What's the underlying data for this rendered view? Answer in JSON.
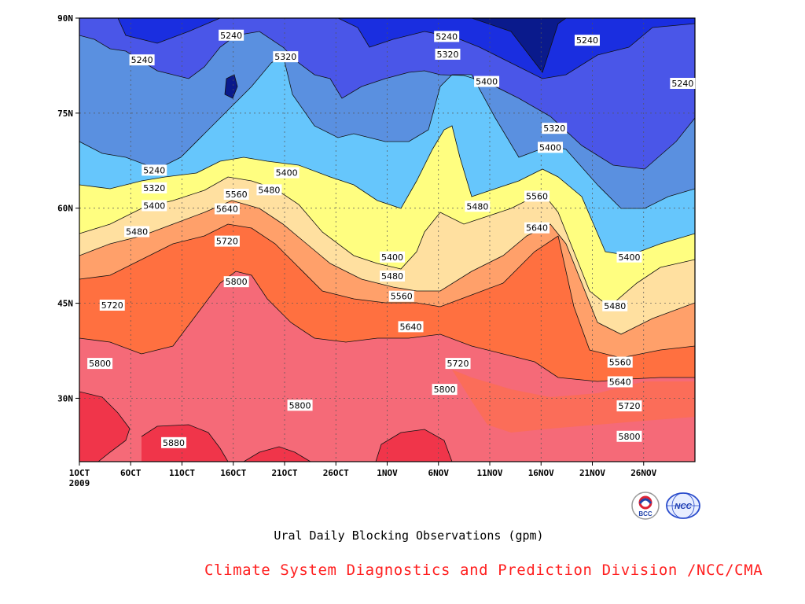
{
  "chart_data": {
    "type": "contour",
    "title": "Ural Daily Blocking Observations (gpm)",
    "xlabel": "",
    "ylabel": "",
    "x_ticks": [
      "1OCT",
      "6OCT",
      "11OCT",
      "16OCT",
      "21OCT",
      "26OCT",
      "1NOV",
      "6NOV",
      "11NOV",
      "16NOV",
      "21NOV",
      "26NOV"
    ],
    "x_year_label": "2009",
    "y_ticks": [
      "90N",
      "75N",
      "60N",
      "45N",
      "30N"
    ],
    "y_values_deg": [
      90,
      75,
      60,
      45,
      30
    ],
    "ylim_deg": [
      20,
      90
    ],
    "xlim_days": [
      0,
      60
    ],
    "grid": "dashed",
    "contour_levels": [
      5240,
      5320,
      5400,
      5480,
      5560,
      5640,
      5720,
      5800,
      5880
    ],
    "fill_colors": {
      "5160": "#0a1a8c",
      "5240": "#1a2ee0",
      "5320": "#4a56e8",
      "5400": "#5a90e0",
      "5480": "#66c6fc",
      "5560": "#fffe80",
      "5640": "#ffe0a0",
      "5720": "#ffa06a",
      "5800": "#ff7040",
      "5880": "#f56a78",
      "5960": "#f0354a"
    },
    "contour_labels": [
      {
        "value": 5240,
        "day": 14.8,
        "lat": 87.3
      },
      {
        "value": 5240,
        "day": 35.8,
        "lat": 87.1
      },
      {
        "value": 5240,
        "day": 49.5,
        "lat": 86.5
      },
      {
        "value": 5240,
        "day": 6.1,
        "lat": 83.4
      },
      {
        "value": 5240,
        "day": 58.8,
        "lat": 79.7
      },
      {
        "value": 5320,
        "day": 20.1,
        "lat": 83.9
      },
      {
        "value": 5320,
        "day": 35.9,
        "lat": 84.3
      },
      {
        "value": 5400,
        "day": 39.7,
        "lat": 80.0
      },
      {
        "value": 5320,
        "day": 46.3,
        "lat": 72.6
      },
      {
        "value": 5400,
        "day": 45.9,
        "lat": 69.6
      },
      {
        "value": 5240,
        "day": 7.3,
        "lat": 66.0
      },
      {
        "value": 5400,
        "day": 20.2,
        "lat": 65.6
      },
      {
        "value": 5320,
        "day": 7.3,
        "lat": 63.2
      },
      {
        "value": 5560,
        "day": 15.3,
        "lat": 62.2
      },
      {
        "value": 5480,
        "day": 18.5,
        "lat": 62.9
      },
      {
        "value": 5560,
        "day": 44.6,
        "lat": 61.9
      },
      {
        "value": 5400,
        "day": 7.3,
        "lat": 60.4
      },
      {
        "value": 5480,
        "day": 38.8,
        "lat": 60.3
      },
      {
        "value": 5640,
        "day": 14.4,
        "lat": 59.9
      },
      {
        "value": 5640,
        "day": 44.6,
        "lat": 56.9
      },
      {
        "value": 5480,
        "day": 5.6,
        "lat": 56.3
      },
      {
        "value": 5720,
        "day": 14.4,
        "lat": 54.8
      },
      {
        "value": 5400,
        "day": 30.5,
        "lat": 52.3
      },
      {
        "value": 5400,
        "day": 53.6,
        "lat": 52.3
      },
      {
        "value": 5480,
        "day": 30.5,
        "lat": 49.3
      },
      {
        "value": 5800,
        "day": 15.3,
        "lat": 48.4
      },
      {
        "value": 5560,
        "day": 31.4,
        "lat": 46.1
      },
      {
        "value": 5720,
        "day": 3.2,
        "lat": 44.7
      },
      {
        "value": 5480,
        "day": 52.2,
        "lat": 44.6
      },
      {
        "value": 5640,
        "day": 32.3,
        "lat": 41.3
      },
      {
        "value": 5800,
        "day": 2.0,
        "lat": 35.5
      },
      {
        "value": 5720,
        "day": 36.9,
        "lat": 35.5
      },
      {
        "value": 5560,
        "day": 52.7,
        "lat": 35.7
      },
      {
        "value": 5640,
        "day": 52.7,
        "lat": 32.6
      },
      {
        "value": 5800,
        "day": 35.6,
        "lat": 31.4
      },
      {
        "value": 5800,
        "day": 21.5,
        "lat": 28.9
      },
      {
        "value": 5720,
        "day": 53.6,
        "lat": 28.8
      },
      {
        "value": 5800,
        "day": 53.6,
        "lat": 24.0
      },
      {
        "value": 5880,
        "day": 9.2,
        "lat": 23.0
      }
    ]
  },
  "credit": "Climate System Diagnostics and Prediction Division /NCC/CMA",
  "logos": [
    {
      "name": "bcc-logo",
      "text": "BCC",
      "color": "#2244aa"
    },
    {
      "name": "ncc-logo",
      "text": "NCC",
      "color": "#2a4ccc"
    }
  ]
}
